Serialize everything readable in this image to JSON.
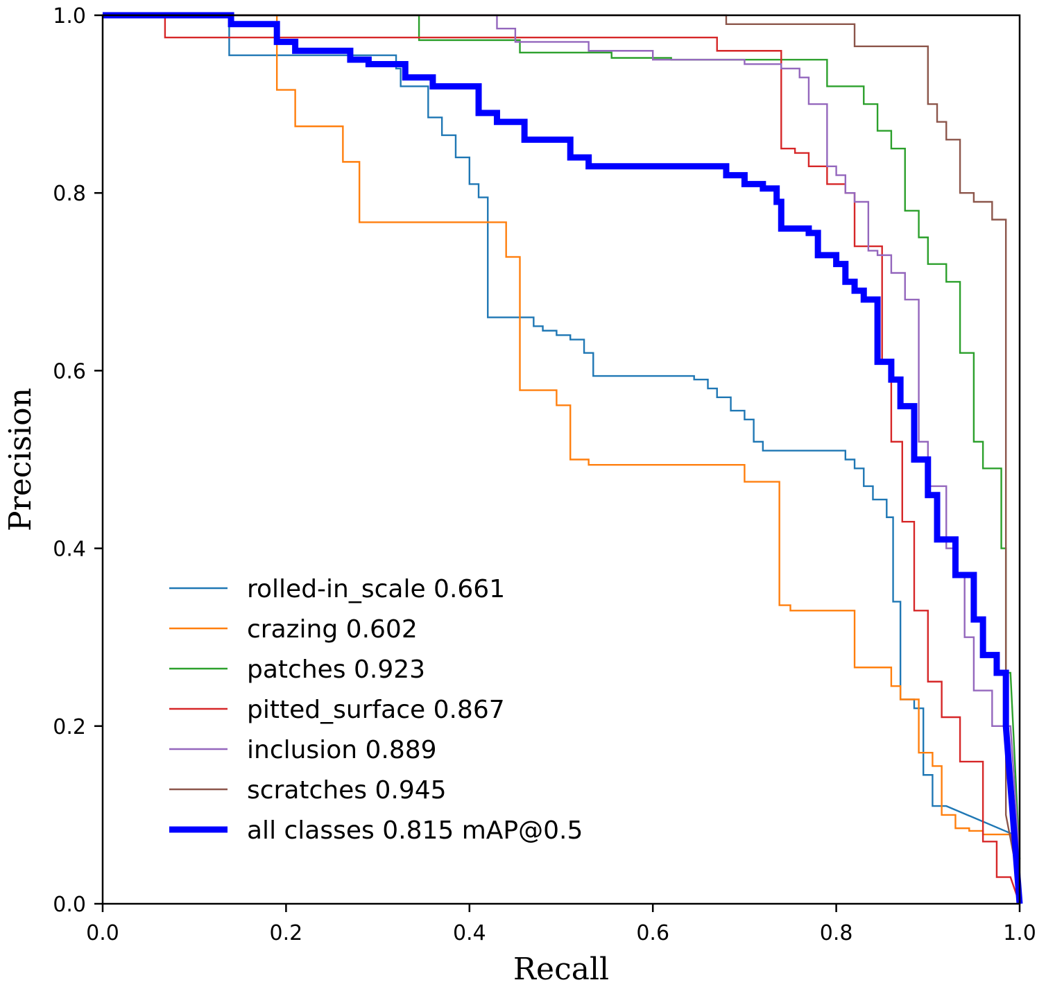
{
  "chart_data": {
    "type": "line",
    "xlabel": "Recall",
    "ylabel": "Precision",
    "xlim": [
      0.0,
      1.0
    ],
    "ylim": [
      0.0,
      1.0
    ],
    "xticks": [
      "0.0",
      "0.2",
      "0.4",
      "0.6",
      "0.8",
      "1.0"
    ],
    "yticks": [
      "0.0",
      "0.2",
      "0.4",
      "0.6",
      "0.8",
      "1.0"
    ],
    "xtick_values": [
      0.0,
      0.2,
      0.4,
      0.6,
      0.8,
      1.0
    ],
    "ytick_values": [
      0.0,
      0.2,
      0.4,
      0.6,
      0.8,
      1.0
    ],
    "grid": false,
    "legend_position": "lower-left",
    "series": [
      {
        "name": "rolled-in_scale 0.661",
        "color": "#1f77b4",
        "thick": false,
        "x": [
          0.0,
          0.138,
          0.138,
          0.32,
          0.32,
          0.325,
          0.325,
          0.355,
          0.355,
          0.37,
          0.37,
          0.385,
          0.385,
          0.4,
          0.4,
          0.41,
          0.41,
          0.42,
          0.42,
          0.435,
          0.435,
          0.47,
          0.47,
          0.48,
          0.48,
          0.495,
          0.495,
          0.51,
          0.51,
          0.525,
          0.525,
          0.535,
          0.535,
          0.55,
          0.55,
          0.645,
          0.645,
          0.66,
          0.66,
          0.67,
          0.67,
          0.685,
          0.685,
          0.7,
          0.7,
          0.71,
          0.71,
          0.72,
          0.72,
          0.74,
          0.74,
          0.81,
          0.81,
          0.82,
          0.82,
          0.83,
          0.83,
          0.84,
          0.84,
          0.855,
          0.855,
          0.862,
          0.862,
          0.87,
          0.87,
          0.885,
          0.885,
          0.895,
          0.895,
          0.905,
          0.905,
          0.92,
          1.0
        ],
        "y": [
          1.0,
          1.0,
          0.955,
          0.955,
          0.94,
          0.94,
          0.92,
          0.92,
          0.885,
          0.885,
          0.865,
          0.865,
          0.84,
          0.84,
          0.81,
          0.81,
          0.795,
          0.795,
          0.66,
          0.66,
          0.66,
          0.66,
          0.65,
          0.65,
          0.645,
          0.645,
          0.64,
          0.64,
          0.635,
          0.635,
          0.62,
          0.62,
          0.594,
          0.594,
          0.594,
          0.594,
          0.59,
          0.59,
          0.58,
          0.58,
          0.57,
          0.57,
          0.555,
          0.555,
          0.545,
          0.545,
          0.52,
          0.52,
          0.51,
          0.51,
          0.51,
          0.51,
          0.5,
          0.5,
          0.49,
          0.49,
          0.47,
          0.47,
          0.455,
          0.455,
          0.435,
          0.435,
          0.34,
          0.34,
          0.23,
          0.23,
          0.22,
          0.22,
          0.145,
          0.145,
          0.11,
          0.11,
          0.075
        ]
      },
      {
        "name": "crazing 0.602",
        "color": "#ff7f0e",
        "thick": false,
        "x": [
          0.0,
          0.19,
          0.19,
          0.21,
          0.21,
          0.262,
          0.262,
          0.28,
          0.28,
          0.44,
          0.44,
          0.455,
          0.455,
          0.495,
          0.495,
          0.51,
          0.51,
          0.53,
          0.53,
          0.7,
          0.7,
          0.738,
          0.738,
          0.75,
          0.75,
          0.82,
          0.82,
          0.86,
          0.86,
          0.87,
          0.87,
          0.89,
          0.89,
          0.905,
          0.905,
          0.915,
          0.915,
          0.93,
          0.93,
          0.945,
          0.945,
          0.96,
          0.96,
          0.99,
          1.0
        ],
        "y": [
          1.0,
          1.0,
          0.916,
          0.916,
          0.875,
          0.875,
          0.835,
          0.835,
          0.767,
          0.767,
          0.728,
          0.728,
          0.578,
          0.578,
          0.561,
          0.561,
          0.5,
          0.5,
          0.494,
          0.494,
          0.475,
          0.475,
          0.336,
          0.336,
          0.33,
          0.33,
          0.266,
          0.266,
          0.245,
          0.245,
          0.23,
          0.23,
          0.17,
          0.17,
          0.155,
          0.155,
          0.1,
          0.1,
          0.085,
          0.085,
          0.082,
          0.082,
          0.078,
          0.078,
          0.04
        ]
      },
      {
        "name": "patches 0.923",
        "color": "#2ca02c",
        "thick": false,
        "x": [
          0.0,
          0.345,
          0.345,
          0.455,
          0.455,
          0.555,
          0.555,
          0.62,
          0.62,
          0.74,
          0.74,
          0.79,
          0.79,
          0.83,
          0.83,
          0.845,
          0.845,
          0.86,
          0.86,
          0.875,
          0.875,
          0.89,
          0.89,
          0.9,
          0.9,
          0.92,
          0.92,
          0.935,
          0.935,
          0.95,
          0.95,
          0.96,
          0.96,
          0.98,
          0.98,
          0.985,
          0.985,
          0.99,
          1.0
        ],
        "y": [
          1.0,
          1.0,
          0.972,
          0.972,
          0.958,
          0.958,
          0.952,
          0.952,
          0.95,
          0.95,
          0.95,
          0.95,
          0.92,
          0.92,
          0.9,
          0.9,
          0.87,
          0.87,
          0.85,
          0.85,
          0.78,
          0.78,
          0.75,
          0.75,
          0.72,
          0.72,
          0.7,
          0.7,
          0.62,
          0.62,
          0.52,
          0.52,
          0.49,
          0.49,
          0.4,
          0.4,
          0.26,
          0.26,
          0.05
        ]
      },
      {
        "name": "pitted_surface 0.867",
        "color": "#d62728",
        "thick": false,
        "x": [
          0.0,
          0.068,
          0.068,
          0.67,
          0.67,
          0.69,
          0.69,
          0.74,
          0.74,
          0.755,
          0.755,
          0.77,
          0.77,
          0.79,
          0.79,
          0.81,
          0.81,
          0.82,
          0.82,
          0.84,
          0.84,
          0.85,
          0.85,
          0.86,
          0.86,
          0.872,
          0.872,
          0.885,
          0.885,
          0.9,
          0.9,
          0.915,
          0.915,
          0.935,
          0.935,
          0.96,
          0.96,
          0.975,
          0.975,
          0.99,
          1.0
        ],
        "y": [
          1.0,
          1.0,
          0.975,
          0.975,
          0.96,
          0.96,
          0.96,
          0.96,
          0.85,
          0.85,
          0.845,
          0.845,
          0.83,
          0.83,
          0.81,
          0.81,
          0.8,
          0.8,
          0.74,
          0.74,
          0.74,
          0.74,
          0.61,
          0.61,
          0.52,
          0.52,
          0.43,
          0.43,
          0.33,
          0.33,
          0.25,
          0.25,
          0.21,
          0.21,
          0.16,
          0.16,
          0.07,
          0.07,
          0.03,
          0.03,
          0.0
        ]
      },
      {
        "name": "inclusion 0.889",
        "color": "#9467bd",
        "thick": false,
        "x": [
          0.0,
          0.43,
          0.43,
          0.45,
          0.45,
          0.53,
          0.53,
          0.6,
          0.6,
          0.7,
          0.7,
          0.74,
          0.74,
          0.76,
          0.76,
          0.77,
          0.77,
          0.79,
          0.79,
          0.8,
          0.8,
          0.81,
          0.81,
          0.82,
          0.82,
          0.835,
          0.835,
          0.845,
          0.845,
          0.86,
          0.86,
          0.875,
          0.875,
          0.89,
          0.89,
          0.9,
          0.9,
          0.92,
          0.92,
          0.93,
          0.93,
          0.94,
          0.94,
          0.95,
          0.95,
          0.97,
          0.97,
          0.99,
          1.0
        ],
        "y": [
          1.0,
          1.0,
          0.985,
          0.985,
          0.97,
          0.97,
          0.96,
          0.96,
          0.95,
          0.95,
          0.945,
          0.945,
          0.94,
          0.94,
          0.93,
          0.93,
          0.9,
          0.9,
          0.83,
          0.83,
          0.82,
          0.82,
          0.8,
          0.8,
          0.79,
          0.79,
          0.735,
          0.735,
          0.73,
          0.73,
          0.71,
          0.71,
          0.68,
          0.68,
          0.52,
          0.52,
          0.47,
          0.47,
          0.4,
          0.4,
          0.37,
          0.37,
          0.3,
          0.3,
          0.24,
          0.24,
          0.2,
          0.2,
          0.05
        ]
      },
      {
        "name": "scratches 0.945",
        "color": "#8c564b",
        "thick": false,
        "x": [
          0.0,
          0.68,
          0.68,
          0.82,
          0.82,
          0.82,
          0.82,
          0.9,
          0.9,
          0.91,
          0.91,
          0.92,
          0.92,
          0.935,
          0.935,
          0.95,
          0.95,
          0.97,
          0.97,
          0.985,
          0.985,
          1.0
        ],
        "y": [
          1.0,
          1.0,
          0.99,
          0.99,
          0.98,
          0.98,
          0.965,
          0.965,
          0.9,
          0.9,
          0.88,
          0.88,
          0.86,
          0.86,
          0.8,
          0.8,
          0.79,
          0.79,
          0.77,
          0.77,
          0.1,
          0.02
        ]
      },
      {
        "name": "all classes 0.815 mAP@0.5",
        "color": "#0000ff",
        "thick": true,
        "x": [
          0.0,
          0.14,
          0.14,
          0.19,
          0.19,
          0.21,
          0.21,
          0.27,
          0.27,
          0.29,
          0.29,
          0.33,
          0.33,
          0.36,
          0.36,
          0.41,
          0.41,
          0.43,
          0.43,
          0.46,
          0.46,
          0.51,
          0.51,
          0.53,
          0.53,
          0.68,
          0.68,
          0.7,
          0.7,
          0.72,
          0.72,
          0.735,
          0.735,
          0.74,
          0.74,
          0.77,
          0.77,
          0.78,
          0.78,
          0.8,
          0.8,
          0.81,
          0.81,
          0.82,
          0.82,
          0.83,
          0.83,
          0.845,
          0.845,
          0.86,
          0.86,
          0.87,
          0.87,
          0.885,
          0.885,
          0.9,
          0.9,
          0.91,
          0.91,
          0.93,
          0.93,
          0.95,
          0.95,
          0.96,
          0.96,
          0.975,
          0.975,
          0.985,
          0.985,
          1.0
        ],
        "y": [
          1.0,
          1.0,
          0.99,
          0.99,
          0.97,
          0.97,
          0.96,
          0.96,
          0.95,
          0.95,
          0.945,
          0.945,
          0.93,
          0.93,
          0.92,
          0.92,
          0.89,
          0.89,
          0.88,
          0.88,
          0.86,
          0.86,
          0.84,
          0.84,
          0.83,
          0.83,
          0.82,
          0.82,
          0.81,
          0.81,
          0.805,
          0.805,
          0.79,
          0.79,
          0.76,
          0.76,
          0.755,
          0.755,
          0.73,
          0.73,
          0.72,
          0.72,
          0.7,
          0.7,
          0.69,
          0.69,
          0.68,
          0.68,
          0.61,
          0.61,
          0.59,
          0.59,
          0.56,
          0.56,
          0.5,
          0.5,
          0.46,
          0.46,
          0.41,
          0.41,
          0.37,
          0.37,
          0.32,
          0.32,
          0.28,
          0.28,
          0.26,
          0.26,
          0.2,
          0.0
        ]
      }
    ]
  }
}
